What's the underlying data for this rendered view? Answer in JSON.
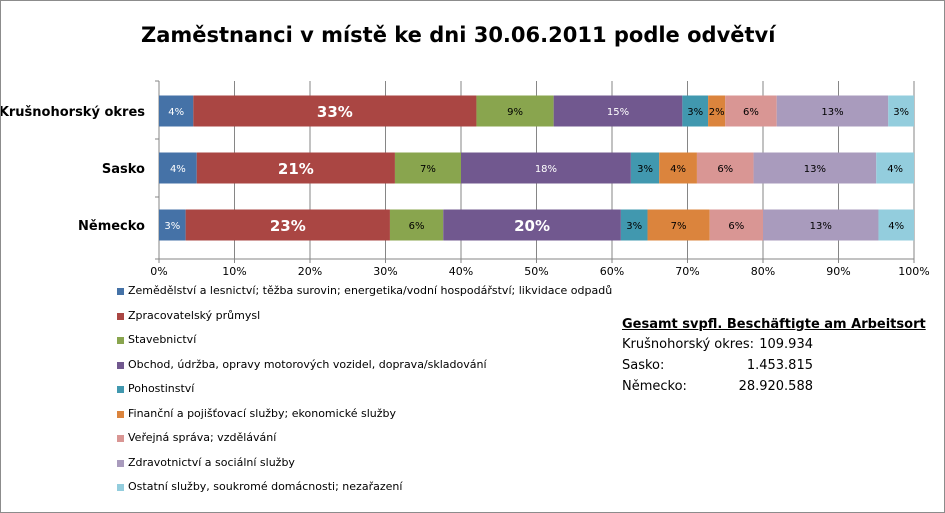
{
  "chart_data": {
    "type": "bar",
    "orientation": "horizontal",
    "stacked": "percent",
    "title": "Zaměstnanci v místě ke dni 30.06.2011 podle odvětví",
    "categories": [
      "Krušnohorský okres",
      "Sasko",
      "Německo"
    ],
    "xlim": [
      0,
      100
    ],
    "xticks": [
      "0%",
      "10%",
      "20%",
      "30%",
      "40%",
      "50%",
      "60%",
      "70%",
      "80%",
      "90%",
      "100%"
    ],
    "grid": "vertical",
    "legend_position": "bottom-left",
    "series": [
      {
        "name": "Zemědělství a lesnictví; těžba surovin; energetika/vodní hospodářství; likvidace odpadů",
        "color": "#4572a7",
        "values": [
          4,
          4,
          3
        ],
        "labels": [
          "4%",
          "4%",
          "3%"
        ]
      },
      {
        "name": "Zpracovatelský průmysl",
        "color": "#aa4643",
        "values": [
          33,
          21,
          23
        ],
        "labels": [
          "33%",
          "21%",
          "23%"
        ]
      },
      {
        "name": "Stavebnictví",
        "color": "#89a54e",
        "values": [
          9,
          7,
          6
        ],
        "labels": [
          "9%",
          "7%",
          "6%"
        ]
      },
      {
        "name": "Obchod, údržba, opravy motorových vozidel, doprava/skladování",
        "color": "#71588f",
        "values": [
          15,
          18,
          20
        ],
        "labels": [
          "15%",
          "18%",
          "20%"
        ]
      },
      {
        "name": "Pohostinství",
        "color": "#4198af",
        "values": [
          3,
          3,
          3
        ],
        "labels": [
          "3%",
          "3%",
          "3%"
        ]
      },
      {
        "name": "Finanční a pojišťovací služby; ekonomické služby",
        "color": "#db843d",
        "values": [
          2,
          4,
          7
        ],
        "labels": [
          "2%",
          "4%",
          "7%"
        ]
      },
      {
        "name": "Veřejná správa; vzdělávání",
        "color": "#d99694",
        "values": [
          6,
          6,
          6
        ],
        "labels": [
          "6%",
          "6%",
          "6%"
        ]
      },
      {
        "name": "Zdravotnictví a sociální služby",
        "color": "#a99bbd",
        "values": [
          13,
          13,
          13
        ],
        "labels": [
          "13%",
          "13%",
          "13%"
        ]
      },
      {
        "name": "Ostatní služby, soukromé domácnosti; nezařazení",
        "color": "#93cddd",
        "values": [
          3,
          4,
          4
        ],
        "labels": [
          "3%",
          "4%",
          "4%"
        ]
      }
    ]
  },
  "totals_box": {
    "title": "Gesamt svpfl. Beschäftigte  am Arbeitsort",
    "rows": [
      {
        "name": "Krušnohorský okres:",
        "value": "109.934"
      },
      {
        "name": "Sasko:",
        "value": "1.453.815"
      },
      {
        "name": "Německo:",
        "value": "28.920.588"
      }
    ]
  }
}
